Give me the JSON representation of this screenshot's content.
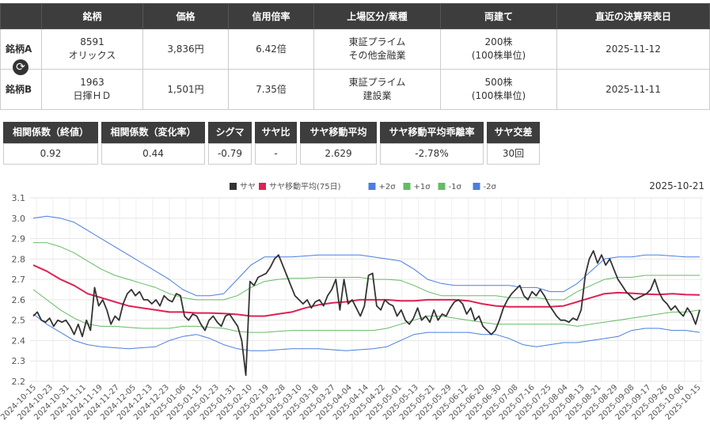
{
  "table": {
    "headers": [
      "銘柄",
      "価格",
      "信用倍率",
      "上場区分/業種",
      "両建て",
      "直近の決算発表日"
    ],
    "rows": [
      {
        "label": "銘柄A",
        "code": "8591",
        "name": "オリックス",
        "price": "3,836円",
        "margin": "6.42倍",
        "market": "東証プライム",
        "sector": "その他金融業",
        "shares": "200株",
        "unit": "(100株単位)",
        "earnings": "2025-11-12"
      },
      {
        "label": "銘柄B",
        "code": "1963",
        "name": "日揮ＨＤ",
        "price": "1,501円",
        "margin": "7.35倍",
        "market": "東証プライム",
        "sector": "建設業",
        "shares": "500株",
        "unit": "(100株単位)",
        "earnings": "2025-11-11"
      }
    ],
    "swap_icon": "swap-icon"
  },
  "stats": [
    {
      "label": "相関係数（終値）",
      "value": "0.92"
    },
    {
      "label": "相関係数（変化率）",
      "value": "0.44"
    },
    {
      "label": "シグマ",
      "value": "-0.79"
    },
    {
      "label": "サヤ比",
      "value": "-"
    },
    {
      "label": "サヤ移動平均",
      "value": "2.629"
    },
    {
      "label": "サヤ移動平均乖離率",
      "value": "-2.78%"
    },
    {
      "label": "サヤ交差",
      "value": "30回"
    }
  ],
  "chart_data": {
    "type": "line",
    "date_label": "2025-10-21",
    "ylim": [
      2.2,
      3.1
    ],
    "yticks": [
      "2.2",
      "2.3",
      "2.4",
      "2.5",
      "2.6",
      "2.7",
      "2.8",
      "2.9",
      "3.0",
      "3.1"
    ],
    "xticks": [
      "2024-10-15",
      "2024-10-23",
      "2024-10-31",
      "2024-11-11",
      "2024-11-19",
      "2024-11-27",
      "2024-12-05",
      "2024-12-13",
      "2024-12-23",
      "2025-01-06",
      "2025-01-15",
      "2025-01-23",
      "2025-01-31",
      "2025-02-10",
      "2025-02-19",
      "2025-02-28",
      "2025-03-10",
      "2025-03-18",
      "2025-03-27",
      "2025-04-04",
      "2025-04-14",
      "2025-04-22",
      "2025-05-01",
      "2025-05-13",
      "2025-05-21",
      "2025-05-29",
      "2025-06-12",
      "2025-06-20",
      "2025-06-30",
      "2025-07-08",
      "2025-07-16",
      "2025-07-25",
      "2025-08-04",
      "2025-08-13",
      "2025-08-21",
      "2025-08-29",
      "2025-09-08",
      "2025-09-17",
      "2025-09-26",
      "2025-10-06",
      "2025-10-15"
    ],
    "series": [
      {
        "name": "サヤ",
        "color": "#333333",
        "width": 1.8,
        "values": [
          2.52,
          2.54,
          2.5,
          2.49,
          2.51,
          2.47,
          2.5,
          2.49,
          2.5,
          2.47,
          2.43,
          2.48,
          2.42,
          2.5,
          2.45,
          2.66,
          2.57,
          2.6,
          2.55,
          2.48,
          2.52,
          2.5,
          2.58,
          2.63,
          2.65,
          2.62,
          2.64,
          2.6,
          2.6,
          2.58,
          2.6,
          2.57,
          2.62,
          2.6,
          2.59,
          2.63,
          2.62,
          2.52,
          2.5,
          2.53,
          2.52,
          2.48,
          2.45,
          2.5,
          2.52,
          2.49,
          2.47,
          2.52,
          2.53,
          2.5,
          2.47,
          2.4,
          2.23,
          2.69,
          2.67,
          2.71,
          2.72,
          2.73,
          2.76,
          2.8,
          2.82,
          2.77,
          2.72,
          2.67,
          2.62,
          2.6,
          2.58,
          2.6,
          2.56,
          2.59,
          2.6,
          2.57,
          2.62,
          2.65,
          2.7,
          2.55,
          2.7,
          2.58,
          2.6,
          2.56,
          2.52,
          2.57,
          2.72,
          2.73,
          2.57,
          2.55,
          2.6,
          2.58,
          2.57,
          2.52,
          2.55,
          2.5,
          2.48,
          2.51,
          2.56,
          2.5,
          2.52,
          2.49,
          2.55,
          2.5,
          2.53,
          2.52,
          2.56,
          2.59,
          2.6,
          2.58,
          2.53,
          2.56,
          2.5,
          2.52,
          2.47,
          2.45,
          2.43,
          2.45,
          2.5,
          2.56,
          2.6,
          2.63,
          2.65,
          2.67,
          2.62,
          2.6,
          2.64,
          2.62,
          2.65,
          2.62,
          2.58,
          2.55,
          2.52,
          2.5,
          2.5,
          2.49,
          2.51,
          2.5,
          2.55,
          2.72,
          2.8,
          2.84,
          2.78,
          2.82,
          2.77,
          2.8,
          2.75,
          2.7,
          2.67,
          2.64,
          2.62,
          2.6,
          2.61,
          2.62,
          2.63,
          2.65,
          2.7,
          2.64,
          2.6,
          2.58,
          2.55,
          2.57,
          2.54,
          2.52,
          2.56,
          2.53,
          2.48,
          2.55
        ]
      },
      {
        "name": "サヤ移動平均(75日)",
        "color": "#dd2255",
        "width": 2,
        "values": [
          2.77,
          2.74,
          2.7,
          2.67,
          2.63,
          2.61,
          2.59,
          2.57,
          2.56,
          2.55,
          2.54,
          2.54,
          2.535,
          2.535,
          2.533,
          2.528,
          2.52,
          2.52,
          2.53,
          2.54,
          2.56,
          2.575,
          2.585,
          2.59,
          2.6,
          2.6,
          2.6,
          2.595,
          2.595,
          2.6,
          2.6,
          2.6,
          2.595,
          2.58,
          2.57,
          2.566,
          2.566,
          2.566,
          2.566,
          2.57,
          2.59,
          2.61,
          2.63,
          2.635,
          2.632,
          2.628,
          2.626,
          2.63,
          2.625,
          2.624
        ]
      },
      {
        "name": "+2σ",
        "color": "#4a7ee0",
        "width": 1,
        "values": [
          3.0,
          3.01,
          3.0,
          2.98,
          2.94,
          2.9,
          2.86,
          2.82,
          2.78,
          2.74,
          2.7,
          2.65,
          2.62,
          2.62,
          2.63,
          2.7,
          2.77,
          2.81,
          2.81,
          2.81,
          2.815,
          2.82,
          2.82,
          2.82,
          2.82,
          2.81,
          2.8,
          2.79,
          2.75,
          2.7,
          2.68,
          2.67,
          2.67,
          2.67,
          2.67,
          2.67,
          2.66,
          2.66,
          2.64,
          2.64,
          2.68,
          2.74,
          2.8,
          2.81,
          2.81,
          2.82,
          2.82,
          2.815,
          2.81,
          2.81
        ]
      },
      {
        "name": "+1σ",
        "color": "#66bb66",
        "width": 1,
        "values": [
          2.88,
          2.88,
          2.86,
          2.83,
          2.79,
          2.75,
          2.72,
          2.7,
          2.68,
          2.66,
          2.63,
          2.61,
          2.6,
          2.6,
          2.6,
          2.62,
          2.66,
          2.69,
          2.7,
          2.705,
          2.705,
          2.71,
          2.71,
          2.71,
          2.71,
          2.7,
          2.7,
          2.695,
          2.67,
          2.64,
          2.62,
          2.62,
          2.62,
          2.62,
          2.62,
          2.61,
          2.61,
          2.61,
          2.6,
          2.6,
          2.64,
          2.67,
          2.7,
          2.71,
          2.71,
          2.72,
          2.72,
          2.72,
          2.72,
          2.72
        ]
      },
      {
        "name": "-1σ",
        "color": "#66bb66",
        "width": 1,
        "values": [
          2.65,
          2.6,
          2.55,
          2.51,
          2.48,
          2.47,
          2.47,
          2.465,
          2.46,
          2.46,
          2.46,
          2.47,
          2.47,
          2.465,
          2.46,
          2.445,
          2.44,
          2.44,
          2.445,
          2.45,
          2.45,
          2.45,
          2.45,
          2.45,
          2.45,
          2.45,
          2.46,
          2.48,
          2.5,
          2.52,
          2.52,
          2.51,
          2.5,
          2.49,
          2.48,
          2.48,
          2.48,
          2.48,
          2.48,
          2.48,
          2.47,
          2.48,
          2.49,
          2.5,
          2.51,
          2.52,
          2.53,
          2.54,
          2.54,
          2.55
        ]
      },
      {
        "name": "-2σ",
        "color": "#4a7ee0",
        "width": 1,
        "values": [
          2.53,
          2.48,
          2.44,
          2.4,
          2.38,
          2.37,
          2.365,
          2.36,
          2.365,
          2.37,
          2.4,
          2.42,
          2.43,
          2.41,
          2.38,
          2.36,
          2.35,
          2.35,
          2.355,
          2.36,
          2.36,
          2.36,
          2.355,
          2.35,
          2.355,
          2.36,
          2.37,
          2.4,
          2.43,
          2.44,
          2.44,
          2.44,
          2.44,
          2.43,
          2.43,
          2.41,
          2.38,
          2.37,
          2.38,
          2.39,
          2.39,
          2.4,
          2.41,
          2.42,
          2.45,
          2.46,
          2.46,
          2.45,
          2.45,
          2.44
        ]
      }
    ]
  }
}
